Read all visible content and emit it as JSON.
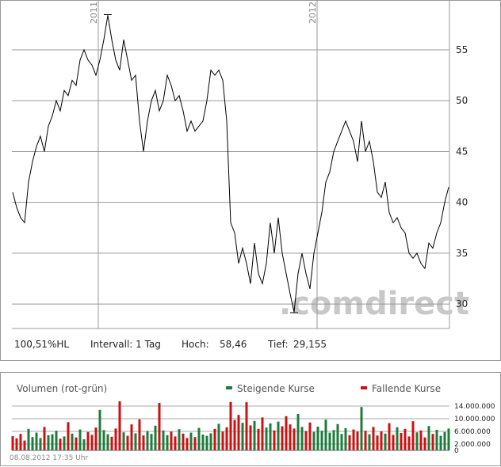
{
  "chart_data": [
    {
      "type": "line",
      "values": [
        41,
        39.5,
        38.5,
        38,
        42,
        44,
        45.5,
        46.5,
        45,
        47.5,
        48.5,
        50,
        49,
        51,
        50.5,
        52,
        51.5,
        54,
        55,
        54,
        53.5,
        52.5,
        54,
        56,
        58.4,
        56,
        54,
        53,
        56,
        54,
        52,
        52.5,
        48,
        45,
        48,
        50,
        51,
        49,
        50,
        52.5,
        51.5,
        50,
        50.5,
        49,
        47,
        48,
        47,
        47.5,
        48,
        50,
        53,
        52.5,
        53,
        52,
        48,
        38,
        37,
        34,
        35.5,
        34,
        32,
        36,
        33,
        32,
        34,
        38,
        35,
        38.5,
        35,
        33,
        31,
        29.2,
        33,
        35,
        33,
        31.5,
        35,
        37,
        39,
        42,
        43,
        45,
        46,
        47,
        48,
        47,
        46,
        44,
        48,
        45,
        46,
        44,
        41,
        40.5,
        42,
        39,
        38,
        38.5,
        37.5,
        37,
        35,
        34.5,
        35,
        34,
        33.5,
        36,
        35.5,
        37,
        38,
        40,
        41.5
      ],
      "color": "#000000",
      "ylim": [
        27.6,
        59.9
      ],
      "yticks": [
        30,
        35,
        40,
        45,
        50,
        55
      ],
      "xticks": [
        {
          "value": 21.6,
          "label": "2011"
        },
        {
          "value": 76.8,
          "label": "2012"
        }
      ],
      "grid": true,
      "watermark": ".comdirect",
      "info": {
        "range": "100,51%HL",
        "interval": "Intervall: 1 Tag",
        "high_label": "Hoch:",
        "high": {
          "value": 58.46,
          "label": "58,46"
        },
        "low_label": "Tief:",
        "low": {
          "value": 29.155,
          "label": "29,155"
        }
      }
    },
    {
      "type": "bar",
      "title": "Volumen (rot-grün)",
      "series": [
        {
          "name": "Steigende Kurse",
          "color": "#1e7b3c"
        },
        {
          "name": "Fallende Kurse",
          "color": "#cc1111"
        }
      ],
      "values": [
        4500000,
        3800000,
        5200000,
        3100000,
        6800000,
        4200000,
        5600000,
        3900000,
        7400000,
        4800000,
        5100000,
        6200000,
        3700000,
        4400000,
        8900000,
        5300000,
        4100000,
        6600000,
        3500000,
        5800000,
        4900000,
        7200000,
        12800000,
        6400000,
        5100000,
        4300000,
        6900000,
        15500000,
        5700000,
        4600000,
        8200000,
        5400000,
        9800000,
        4700000,
        6100000,
        5200000,
        7800000,
        15000000,
        6300000,
        4800000,
        5900000,
        4400000,
        6700000,
        5300000,
        3900000,
        5600000,
        4200000,
        7100000,
        5000000,
        4600000,
        5400000,
        6800000,
        8400000,
        5900000,
        7300000,
        15300000,
        9600000,
        11200000,
        8700000,
        15200000,
        7900000,
        9300000,
        6800000,
        10400000,
        7200000,
        8500000,
        6300000,
        9100000,
        7600000,
        10800000,
        8200000,
        6900000,
        11500000,
        7400000,
        6100000,
        8800000,
        5800000,
        7500000,
        6200000,
        9700000,
        5600000,
        6400000,
        8300000,
        5200000,
        7000000,
        4800000,
        6600000,
        5900000,
        13700000,
        6200000,
        5100000,
        7400000,
        4700000,
        6000000,
        5300000,
        8600000,
        4900000,
        7300000,
        5500000,
        6800000,
        4400000,
        9200000,
        5700000,
        6300000,
        4100000,
        7700000,
        5200000,
        6500000,
        4600000,
        5800000,
        6900000
      ],
      "ylim": [
        0,
        16000000
      ],
      "yticks": [
        0,
        {
          "value": 2000000,
          "label": "2.000.000"
        },
        {
          "value": 6000000,
          "label": "6.000.000"
        },
        {
          "value": 10000000,
          "label": "10.000.000"
        },
        {
          "value": 14000000,
          "label": "14.000.000"
        }
      ],
      "grid": true,
      "timestamp": "08.08.2012 17:35 Uhr"
    }
  ]
}
